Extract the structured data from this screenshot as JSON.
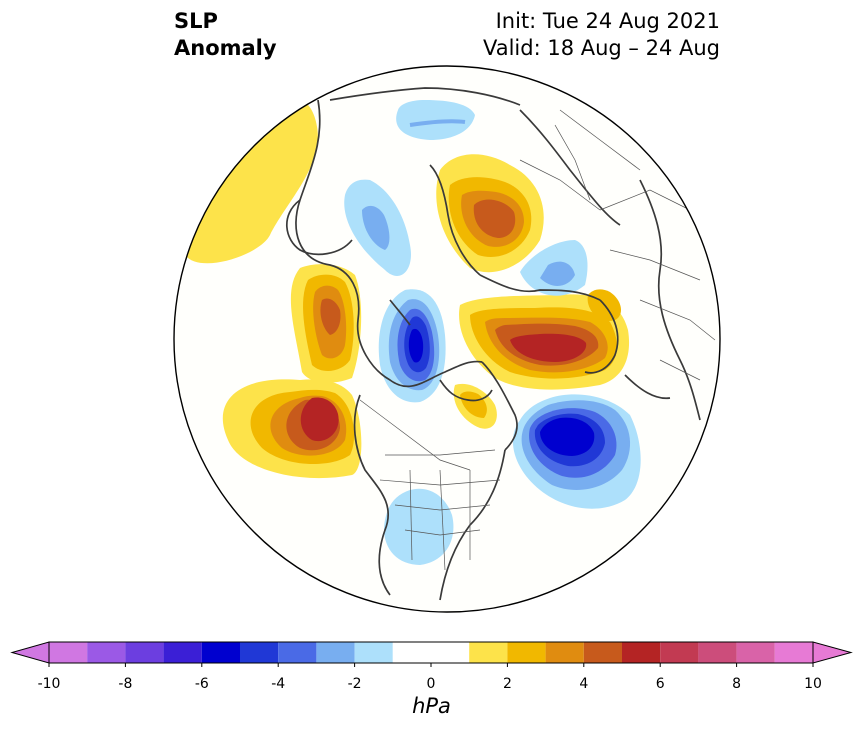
{
  "header": {
    "title_line1": "SLP",
    "title_line2": "Anomaly",
    "init": "Init: Tue 24 Aug 2021",
    "valid": "Valid: 18 Aug – 24 Aug"
  },
  "map": {
    "projection": "north-polar-stereographic",
    "variable": "sea-level-pressure-anomaly",
    "anomaly_centers": [
      {
        "region": "North Pacific / Gulf of Alaska",
        "sign": "positive",
        "max_hpa": 6
      },
      {
        "region": "Alaska / Bering coast",
        "sign": "positive",
        "max_hpa": 5
      },
      {
        "region": "Northern Siberia (Taymyr)",
        "sign": "positive",
        "max_hpa": 5
      },
      {
        "region": "Greenland / Barents",
        "sign": "positive",
        "max_hpa": 6
      },
      {
        "region": "Canadian Archipelago",
        "sign": "positive",
        "max_hpa": 2
      },
      {
        "region": "North Atlantic",
        "sign": "negative",
        "min_hpa": -7
      },
      {
        "region": "Beaufort / Chukchi",
        "sign": "negative",
        "min_hpa": -6
      },
      {
        "region": "East Siberian Sea",
        "sign": "negative",
        "min_hpa": -3
      },
      {
        "region": "Scandinavia",
        "sign": "negative",
        "min_hpa": -2
      },
      {
        "region": "Central Asia",
        "sign": "negative",
        "min_hpa": -2
      },
      {
        "region": "Central United States",
        "sign": "negative",
        "min_hpa": -2
      }
    ]
  },
  "colorbar": {
    "unit": "hPa",
    "ticks": [
      "-10",
      "-8",
      "-6",
      "-4",
      "-2",
      "0",
      "2",
      "4",
      "6",
      "8",
      "10"
    ],
    "levels": [
      -10,
      -9,
      -8,
      -7,
      -6,
      -5,
      -4,
      -3,
      -2,
      -1,
      1,
      2,
      3,
      4,
      5,
      6,
      7,
      8,
      9,
      10
    ],
    "colors": [
      "#d077e2",
      "#9b59e6",
      "#6c3ee0",
      "#3b1fd6",
      "#0000cf",
      "#2038d6",
      "#4a6ae6",
      "#78aef0",
      "#ade0fb",
      "#ffffff",
      "#fde34a",
      "#f1b800",
      "#e08c10",
      "#c75a1c",
      "#b42424",
      "#c23a52",
      "#cc4d7b",
      "#d963a8",
      "#e77ad5"
    ],
    "extend_under": "#d077e2",
    "extend_over": "#e77ad5"
  }
}
